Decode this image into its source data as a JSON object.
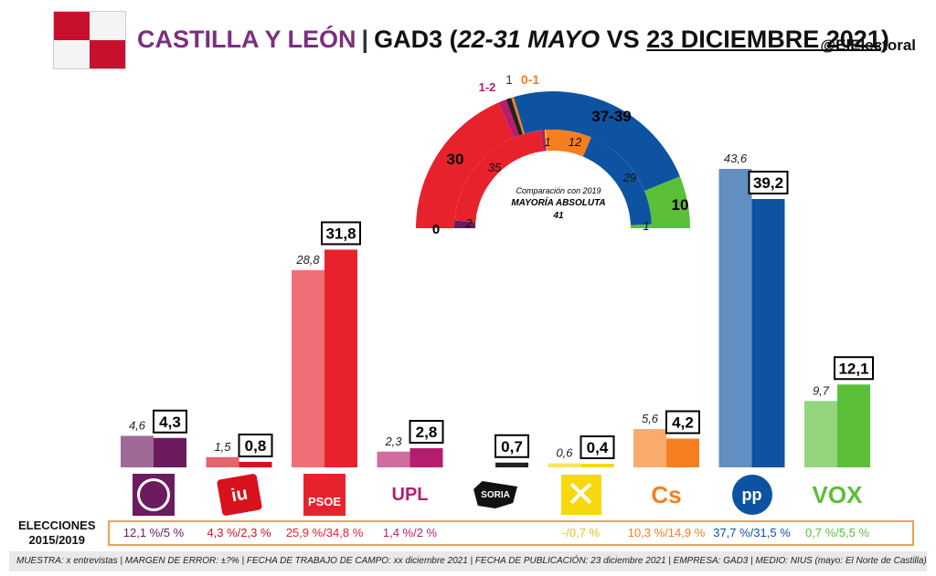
{
  "header": {
    "region": "CASTILLA Y LEÓN",
    "separator": "|",
    "pollster": "GAD3 (",
    "period": "22-31 MAYO",
    "vs": " VS ",
    "date": "23 DICIEMBRE 2021",
    "close": ")",
    "handle": "@ElElectoral"
  },
  "colors": {
    "podemos": "#6b1b5e",
    "iu": "#d7121d",
    "psoe": "#e8222c",
    "upl": "#b51e6e",
    "soria": "#222222",
    "xav": "#f5d90a",
    "cs": "#f57e20",
    "pp": "#0d53a1",
    "vox": "#5bbf38"
  },
  "chart_data": [
    {
      "type": "bar",
      "categories": [
        "Podemos",
        "IU",
        "PSOE",
        "UPL",
        "Soria ¡Ya!",
        "XAV",
        "Cs",
        "PP",
        "Vox"
      ],
      "series": [
        {
          "values": [
            4.6,
            1.5,
            28.8,
            2.3,
            null,
            0.6,
            5.6,
            43.6,
            9.7
          ],
          "labels": [
            "4,6",
            "1,5",
            "28,8",
            "2,3",
            "",
            "0,6",
            "5,6",
            "43,6",
            "9,7"
          ]
        },
        {
          "values": [
            4.3,
            0.8,
            31.8,
            2.8,
            0.7,
            0.4,
            4.2,
            39.2,
            12.1
          ],
          "labels": [
            "4,3",
            "0,8",
            "31,8",
            "2,8",
            "0,7",
            "0,4",
            "4,2",
            "39,2",
            "12,1"
          ]
        }
      ],
      "logos": [
        "",
        "iu",
        "PSOE",
        "UPL",
        "SORIA",
        "",
        "Cs",
        "pp",
        "VOX"
      ],
      "ylim": [
        0,
        46
      ]
    },
    {
      "type": "pie",
      "subtype": "hemicycle",
      "outer": {
        "slices": [
          {
            "party": "psoe",
            "value": 30,
            "label": "30"
          },
          {
            "party": "upl",
            "value": 1.5,
            "label": "1-2"
          },
          {
            "party": "soria",
            "value": 1,
            "label": "1"
          },
          {
            "party": "cs",
            "value": 0.5,
            "label": "0-1"
          },
          {
            "party": "pp",
            "value": 38,
            "label": "37-39"
          },
          {
            "party": "vox",
            "value": 10,
            "label": "10"
          }
        ],
        "zero_label": "0"
      },
      "inner": {
        "slices": [
          {
            "party": "podemos",
            "value": 2,
            "label": "2"
          },
          {
            "party": "psoe",
            "value": 35,
            "label": "35"
          },
          {
            "party": "upl",
            "value": 1,
            "label": ""
          },
          {
            "party": "soria",
            "value": 0,
            "label": ""
          },
          {
            "party": "xav",
            "value": 0.3,
            "label": ""
          },
          {
            "party": "cs",
            "value": 12,
            "label": "12"
          },
          {
            "party": "pp",
            "value": 29,
            "label": "29"
          },
          {
            "party": "vox",
            "value": 1,
            "label": "1"
          }
        ],
        "upl_label": "1"
      },
      "center": {
        "line1": "Comparación con 2019",
        "line2": "MAYORÍA ABSOLUTA",
        "line3": "41"
      }
    }
  ],
  "elections": {
    "label_line1": "ELECCIONES",
    "label_line2": "2015/2019",
    "values": [
      "12,1 %/5 %",
      "4,3 %/2,3 %",
      "25,9 %/34,8 %",
      "1,4 %/2 %",
      "",
      "-/0,7 %",
      "10,3 %/14,9 %",
      "37,7 %/31,5 %",
      "0,7 %/5,5 %"
    ]
  },
  "footer": "MUESTRA: x entrevistas | MARGEN DE ERROR: ±?% | FECHA DE TRABAJO DE CAMPO: xx diciembre 2021 | FECHA DE PUBLICACIÓN: 23 diciembre 2021 | EMPRESA: GAD3 | MEDIO: NIUS (mayo: El Norte de Castilla)"
}
